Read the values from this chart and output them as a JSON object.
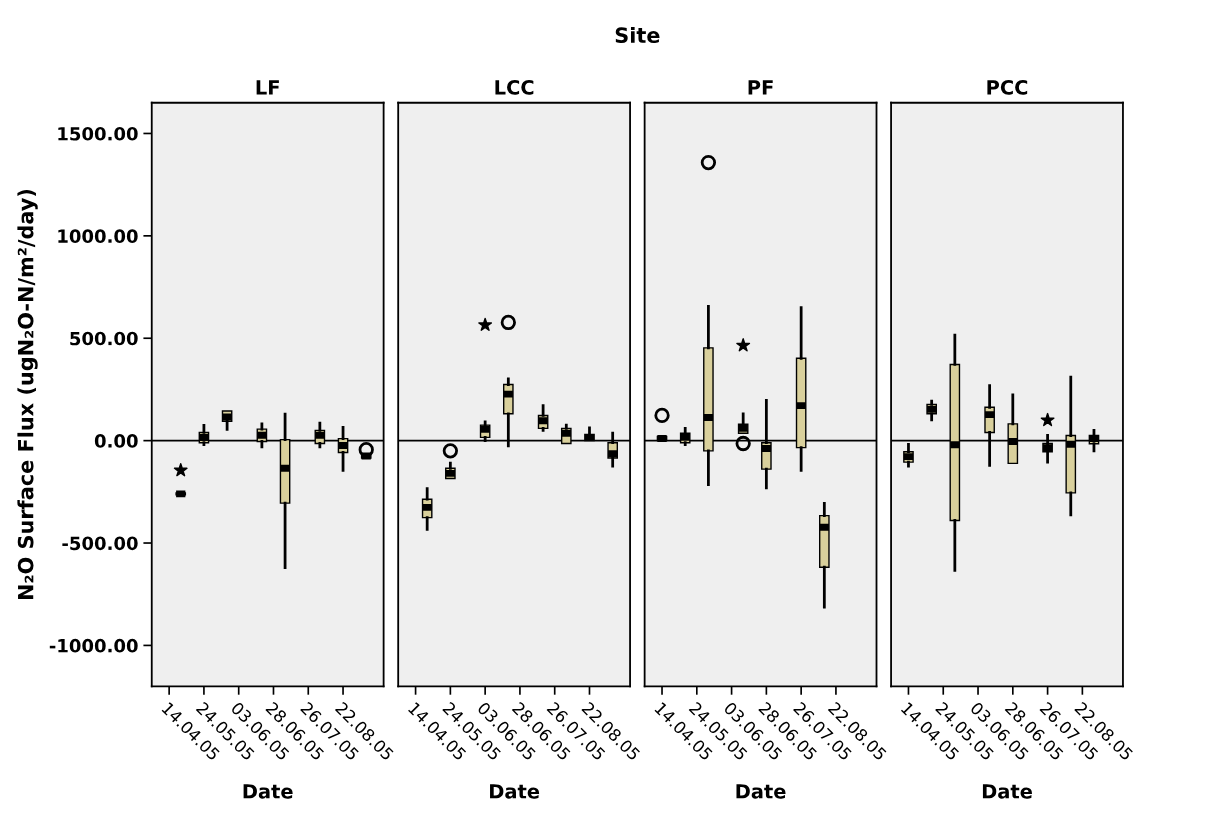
{
  "chart_data": [
    {
      "type": "box",
      "title": "LF",
      "xlabel": "Date",
      "ylabel": "N₂O Surface Flux (ugN₂O-N/m²/day)",
      "annotations": [
        "Site"
      ],
      "color": "#d9d09c",
      "categories": [
        "14.04.05",
        null,
        null,
        "24.05.05",
        null,
        null,
        "03.06.05",
        null,
        null,
        "28.06.05",
        null,
        null,
        "26.07.05",
        null,
        null,
        "22.08.05",
        null,
        null
      ],
      "boxes": [
        null,
        {
          "low": -265,
          "q1": -265,
          "median": -260,
          "q3": -255,
          "high": -255
        },
        null,
        {
          "low": -20,
          "q1": -10,
          "median": 15,
          "q3": 40,
          "high": 75
        },
        null,
        {
          "low": 55,
          "q1": 95,
          "median": 115,
          "q3": 145,
          "high": 145
        },
        null,
        null,
        {
          "low": -30,
          "q1": -4,
          "median": 26,
          "q3": 56,
          "high": 82
        },
        null,
        {
          "low": -620,
          "q1": -305,
          "median": -135,
          "q3": 5,
          "high": 130
        },
        null,
        null,
        {
          "low": -30,
          "q1": -14,
          "median": 26,
          "q3": 50,
          "high": 85
        },
        null,
        {
          "low": -145,
          "q1": -58,
          "median": -24,
          "q3": 10,
          "high": 65
        },
        null,
        {
          "low": -85,
          "q1": -85,
          "median": -75,
          "q3": -65,
          "high": -65,
          "outliers": [
            -44
          ]
        }
      ],
      "series": [
        {
          "type": "scatter",
          "marker": "star",
          "color": "#000000",
          "values": [
            null,
            -145,
            null,
            null,
            null,
            null,
            null,
            null,
            null,
            null,
            null,
            null,
            null,
            null,
            null,
            null,
            null,
            null
          ]
        }
      ],
      "ylim": [
        -1200,
        1650
      ],
      "yticks": [
        {
          "value": -1000,
          "label": "-1000.00"
        },
        {
          "value": -500,
          "label": "-500.00"
        },
        {
          "value": 0,
          "label": "0.00"
        },
        {
          "value": 500,
          "label": "500.00"
        },
        {
          "value": 1000,
          "label": "1000.00"
        },
        {
          "value": 1500,
          "label": "1500.00"
        }
      ],
      "ref_lines": [
        {
          "axis": "y",
          "value": 0,
          "color": "#000000"
        }
      ]
    },
    {
      "type": "box",
      "title": "LCC",
      "xlabel": "Date",
      "color": "#d9d09c",
      "tick_labels": "x",
      "categories": [
        "14.04.05",
        null,
        null,
        "24.05.05",
        null,
        null,
        "03.06.05",
        null,
        null,
        "28.06.05",
        null,
        null,
        "26.07.05",
        null,
        null,
        "22.08.05",
        null,
        null
      ],
      "boxes": [
        null,
        {
          "low": -433,
          "q1": -376,
          "median": -326,
          "q3": -286,
          "high": -235
        },
        null,
        {
          "low": -185,
          "q1": -185,
          "median": -160,
          "q3": -135,
          "high": -110,
          "outliers": [
            -50
          ]
        },
        null,
        null,
        {
          "low": 0,
          "q1": 16,
          "median": 56,
          "q3": 76,
          "high": 92
        },
        null,
        {
          "low": -26,
          "q1": 131,
          "median": 227,
          "q3": 274,
          "high": 302,
          "outliers": [
            577
          ]
        },
        null,
        null,
        {
          "low": 50,
          "q1": 60,
          "median": 97,
          "q3": 123,
          "high": 171
        },
        null,
        {
          "low": -14,
          "q1": -14,
          "median": 36,
          "q3": 60,
          "high": 76
        },
        null,
        {
          "low": 0,
          "q1": 0,
          "median": 16,
          "q3": 30,
          "high": 62
        },
        null,
        {
          "low": -125,
          "q1": -85,
          "median": -64,
          "q3": -10,
          "high": 36
        }
      ],
      "series": [
        {
          "type": "scatter",
          "marker": "star",
          "color": "#000000",
          "values": [
            null,
            null,
            null,
            null,
            null,
            null,
            565,
            null,
            null,
            null,
            null,
            null,
            null,
            null,
            null,
            null,
            null,
            null
          ]
        }
      ],
      "ylim": [
        -1200,
        1650
      ],
      "ref_lines": [
        {
          "axis": "y",
          "value": 0,
          "color": "#000000"
        }
      ]
    },
    {
      "type": "box",
      "title": "PF",
      "xlabel": "Date",
      "color": "#d9d09c",
      "tick_labels": "x",
      "categories": [
        "14.04.05",
        null,
        null,
        "24.05.05",
        null,
        null,
        "03.06.05",
        null,
        null,
        "28.06.05",
        null,
        null,
        "26.07.05",
        null,
        null,
        "22.08.05",
        null,
        null
      ],
      "boxes": [
        {
          "low": 0,
          "q1": 0,
          "median": 10,
          "q3": 20,
          "high": 20,
          "outliers": [
            123
          ]
        },
        null,
        {
          "low": -20,
          "q1": -10,
          "median": 16,
          "q3": 36,
          "high": 60
        },
        null,
        {
          "low": -215,
          "q1": -50,
          "median": 113,
          "q3": 453,
          "high": 656,
          "outliers": [
            1358
          ]
        },
        null,
        null,
        {
          "low": 36,
          "q1": 36,
          "median": 60,
          "q3": 80,
          "high": 131,
          "outliers": [
            -14
          ]
        },
        null,
        {
          "low": -231,
          "q1": -139,
          "median": -38,
          "q3": -10,
          "high": 197
        },
        null,
        null,
        {
          "low": -145,
          "q1": -34,
          "median": 171,
          "q3": 402,
          "high": 650
        },
        null,
        {
          "low": -813,
          "q1": -618,
          "median": -423,
          "q3": -366,
          "high": -306
        },
        null,
        null,
        null
      ],
      "series": [
        {
          "type": "scatter",
          "marker": "star",
          "color": "#000000",
          "values": [
            null,
            null,
            null,
            null,
            null,
            null,
            null,
            465,
            null,
            null,
            null,
            null,
            null,
            null,
            null,
            null,
            null,
            null
          ]
        }
      ],
      "ylim": [
        -1200,
        1650
      ],
      "ref_lines": [
        {
          "axis": "y",
          "value": 0,
          "color": "#000000"
        }
      ]
    },
    {
      "type": "box",
      "title": "PCC",
      "xlabel": "Date",
      "color": "#d9d09c",
      "tick_labels": "x",
      "categories": [
        "14.04.05",
        null,
        null,
        "24.05.05",
        null,
        null,
        "03.06.05",
        null,
        null,
        "28.06.05",
        null,
        null,
        "26.07.05",
        null,
        null,
        "22.08.05",
        null,
        null
      ],
      "boxes": [
        {
          "low": -125,
          "q1": -105,
          "median": -78,
          "q3": -54,
          "high": -18
        },
        null,
        {
          "low": 101,
          "q1": 131,
          "median": 153,
          "q3": 177,
          "high": 193
        },
        null,
        {
          "low": -634,
          "q1": -390,
          "median": -20,
          "q3": 372,
          "high": 515
        },
        null,
        null,
        {
          "low": -121,
          "q1": 40,
          "median": 127,
          "q3": 163,
          "high": 268
        },
        null,
        {
          "low": -111,
          "q1": -111,
          "median": -4,
          "q3": 82,
          "high": 223
        },
        null,
        null,
        {
          "low": -105,
          "q1": -54,
          "median": -34,
          "q3": -14,
          "high": 26
        },
        null,
        {
          "low": -362,
          "q1": -255,
          "median": -18,
          "q3": 25,
          "high": 310
        },
        null,
        {
          "low": -50,
          "q1": -15,
          "median": 10,
          "q3": 25,
          "high": 50
        },
        null
      ],
      "series": [
        {
          "type": "scatter",
          "marker": "star",
          "color": "#000000",
          "values": [
            null,
            null,
            null,
            null,
            null,
            null,
            null,
            null,
            null,
            null,
            null,
            null,
            100,
            null,
            null,
            null,
            null,
            null
          ]
        }
      ],
      "ylim": [
        -1200,
        1650
      ],
      "ref_lines": [
        {
          "axis": "y",
          "value": 0,
          "color": "#000000"
        }
      ]
    }
  ]
}
